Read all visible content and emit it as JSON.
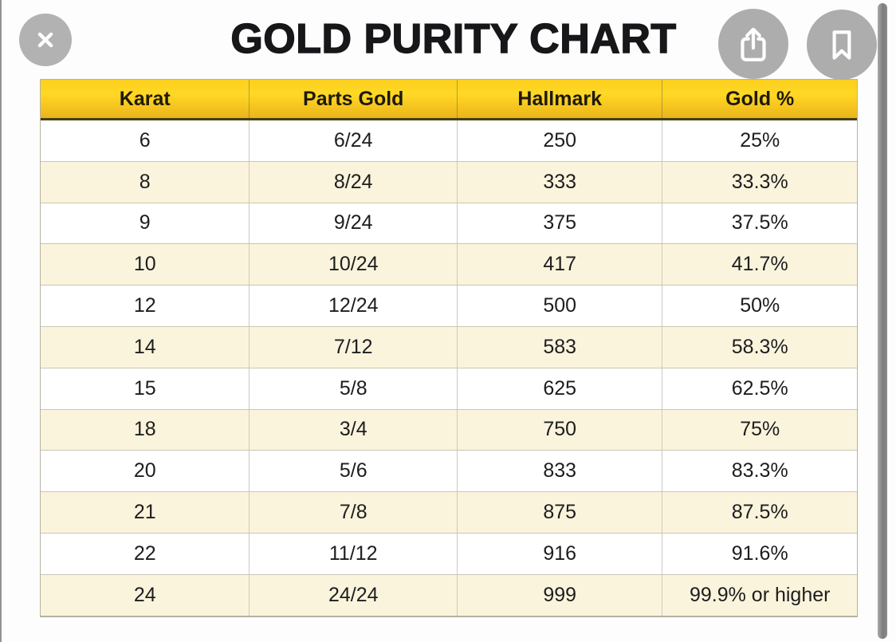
{
  "viewer": {
    "close_icon": "close-icon",
    "share_icon": "share-icon",
    "bookmark_icon": "bookmark-icon",
    "scrollbar": "vertical-scrollbar"
  },
  "colors": {
    "header_yellow_top": "#fccf1e",
    "header_yellow_bottom": "#e9b51c",
    "header_border_bottom": "#45400f",
    "row_alt_cream": "#fbf4dc",
    "row_white": "#ffffff",
    "row_border": "#ccc5b3",
    "text": "#1d1d1f",
    "button_gray": "#adadad",
    "scrollbar_gray": "#7d7d7d"
  },
  "chart_data": {
    "type": "table",
    "title": "GOLD PURITY CHART",
    "columns": [
      "Karat",
      "Parts Gold",
      "Hallmark",
      "Gold %"
    ],
    "rows": [
      [
        "6",
        "6/24",
        "250",
        "25%"
      ],
      [
        "8",
        "8/24",
        "333",
        "33.3%"
      ],
      [
        "9",
        "9/24",
        "375",
        "37.5%"
      ],
      [
        "10",
        "10/24",
        "417",
        "41.7%"
      ],
      [
        "12",
        "12/24",
        "500",
        "50%"
      ],
      [
        "14",
        "7/12",
        "583",
        "58.3%"
      ],
      [
        "15",
        "5/8",
        "625",
        "62.5%"
      ],
      [
        "18",
        "3/4",
        "750",
        "75%"
      ],
      [
        "20",
        "5/6",
        "833",
        "83.3%"
      ],
      [
        "21",
        "7/8",
        "875",
        "87.5%"
      ],
      [
        "22",
        "11/12",
        "916",
        "91.6%"
      ],
      [
        "24",
        "24/24",
        "999",
        "99.9% or higher"
      ]
    ]
  }
}
